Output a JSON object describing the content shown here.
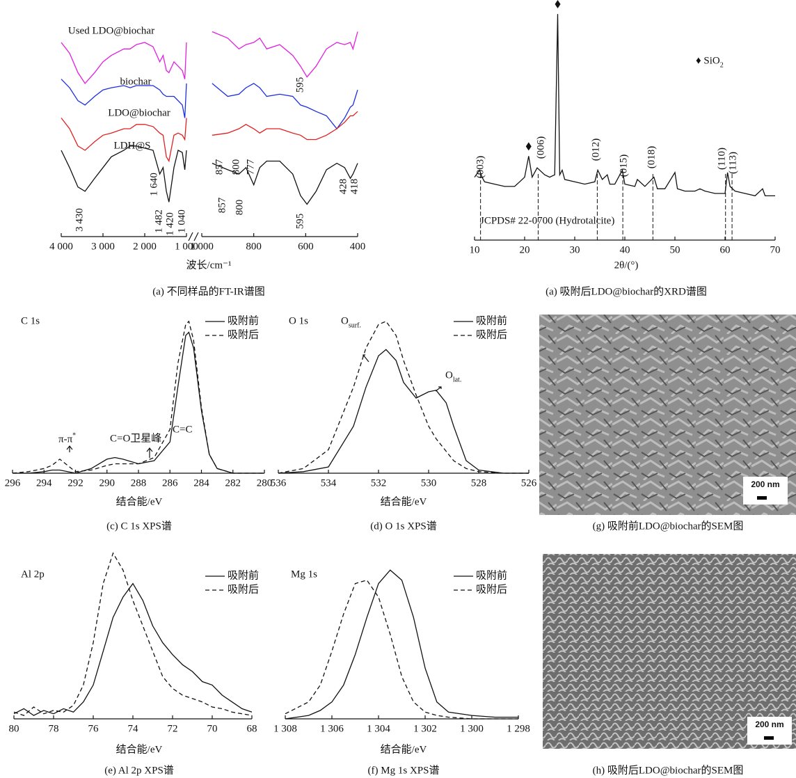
{
  "chart_data": [
    {
      "type": "line",
      "xlabel": "波长/cm⁻¹",
      "caption": "(a) 不同样品的FT-IR谱图",
      "segments": [
        {
          "xlim": [
            4000,
            1000
          ],
          "xticks": [
            {
              "value": 4000,
              "label": "4 000"
            },
            {
              "value": 3000,
              "label": "3 000"
            },
            {
              "value": 2000,
              "label": "2 000"
            },
            {
              "value": 1000,
              "label": "1 000"
            }
          ]
        },
        {
          "xlim": [
            1000,
            400
          ],
          "xticks": [
            {
              "value": 1000,
              "label": "1 000"
            },
            800,
            600,
            400
          ]
        }
      ],
      "ylim": [
        0,
        100
      ],
      "x": [
        4000,
        3800,
        3600,
        3430,
        3200,
        3000,
        2800,
        2500,
        2350,
        2200,
        2000,
        1800,
        1640,
        1560,
        1482,
        1420,
        1300,
        1200,
        1100,
        1040,
        1000,
        960,
        900,
        857,
        830,
        800,
        777,
        750,
        700,
        650,
        620,
        595,
        560,
        520,
        480,
        450,
        428,
        418,
        400
      ],
      "series": [
        {
          "name": "Used LDO@biochar",
          "color": "#e020e0",
          "dash": false,
          "values": [
            90,
            85,
            76,
            71,
            76,
            81,
            84,
            87,
            87,
            89,
            90,
            88,
            81,
            84,
            77,
            76,
            81,
            79,
            77,
            73,
            90,
            95,
            92,
            87,
            89,
            90,
            92,
            87,
            89,
            84,
            79,
            74,
            79,
            87,
            90,
            89,
            90,
            87,
            95
          ]
        },
        {
          "name": "biochar",
          "color": "#1a2ee0",
          "dash": false,
          "values": [
            73,
            69,
            63,
            61,
            65,
            68,
            69,
            70,
            69,
            70,
            70,
            70,
            68,
            66,
            65,
            65,
            65,
            63,
            61,
            55,
            71,
            71,
            65,
            66,
            69,
            71,
            69,
            65,
            66,
            65,
            61,
            60,
            58,
            56,
            50,
            55,
            60,
            61,
            68
          ]
        },
        {
          "name": "LDO@biochar",
          "color": "#e02020",
          "dash": false,
          "values": [
            55,
            50,
            42,
            40,
            44,
            47,
            48,
            50,
            50,
            52,
            52,
            51,
            48,
            47,
            37,
            35,
            47,
            48,
            47,
            45,
            55,
            47,
            48,
            50,
            52,
            50,
            48,
            50,
            50,
            48,
            47,
            45,
            45,
            47,
            50,
            53,
            56,
            56,
            58
          ]
        },
        {
          "name": "LDH@S",
          "color": "#111111",
          "dash": false,
          "values": [
            40,
            32,
            23,
            21,
            27,
            32,
            37,
            40,
            42,
            42,
            41,
            40,
            29,
            32,
            21,
            16,
            32,
            40,
            39,
            31,
            40,
            34,
            31,
            29,
            32,
            24,
            32,
            35,
            35,
            29,
            19,
            15,
            21,
            31,
            34,
            32,
            27,
            29,
            34
          ]
        }
      ],
      "annotations": [
        "3 430",
        "1 640",
        "1 482",
        "1 420",
        "1 040",
        "857",
        "800",
        "777",
        "857",
        "800",
        "595",
        "595",
        "428",
        "418"
      ]
    },
    {
      "type": "line",
      "xlabel": "2θ/(°)",
      "caption": "(a) 吸附后LDO@biochar的XRD谱图",
      "xlim": [
        10,
        70
      ],
      "xticks": [
        10,
        20,
        30,
        40,
        50,
        60,
        70
      ],
      "ylim": [
        0,
        100
      ],
      "x": [
        10,
        11,
        11.5,
        12,
        14,
        16,
        18,
        19,
        20,
        20.8,
        21.5,
        22.5,
        24,
        25,
        26,
        26.6,
        27,
        27.5,
        28,
        30,
        32,
        34,
        34.6,
        35.5,
        36.5,
        37,
        38,
        39.5,
        40,
        42,
        42.5,
        44,
        45.8,
        46.5,
        48,
        50,
        50.5,
        52,
        54,
        55,
        56,
        58,
        60,
        60.5,
        61,
        62,
        64,
        66,
        67.5,
        68,
        70
      ],
      "series": [
        {
          "color": "#111111",
          "dash": false,
          "values": [
            27,
            30,
            27,
            25,
            24,
            23,
            23,
            25,
            27,
            36,
            27,
            31,
            28,
            27,
            28,
            97,
            28,
            30,
            26,
            25,
            24,
            25,
            30,
            26,
            28,
            24,
            24,
            30,
            24,
            23,
            26,
            23,
            27,
            22,
            22,
            29,
            22,
            21,
            21,
            22,
            21,
            20,
            20,
            29,
            23,
            21,
            20,
            19,
            22,
            19,
            19
          ]
        }
      ],
      "ref_lines": [
        11.2,
        22.7,
        34.5,
        39.6,
        45.6,
        60.1,
        61.4
      ],
      "markers": [
        20.8,
        26.6
      ],
      "annotations": [
        "(003)",
        "(006)",
        "(012)",
        "(015)",
        "(018)",
        "(110)",
        "(113)",
        "JCPDS# 22-0700 (Hydrotalcite)",
        {
          "text": "♦  SiO",
          "sub": "2"
        }
      ]
    },
    {
      "type": "line",
      "title": "C 1s",
      "xlabel": "结合能/eV",
      "caption": "(c) C 1s XPS谱",
      "xlim": [
        296,
        280
      ],
      "xticks": [
        296,
        294,
        292,
        290,
        288,
        286,
        284,
        282,
        280
      ],
      "ylim": [
        0,
        100
      ],
      "x": [
        296,
        295,
        294,
        293.5,
        293,
        292.5,
        292,
        291,
        290,
        289.5,
        289,
        288,
        287,
        286,
        285.5,
        285,
        284.8,
        284.5,
        284,
        283.5,
        283,
        282,
        280
      ],
      "series": [
        {
          "name": "吸附前",
          "color": "#111111",
          "dash": false,
          "values": [
            0,
            0,
            1,
            2,
            2,
            1,
            0,
            3,
            9,
            10,
            9,
            6,
            8,
            20,
            55,
            88,
            90,
            80,
            40,
            12,
            3,
            0,
            0
          ]
        },
        {
          "name": "吸附后",
          "color": "#111111",
          "dash": true,
          "values": [
            0,
            1,
            3,
            5,
            9,
            5,
            1,
            2,
            5,
            6,
            6,
            6,
            10,
            28,
            70,
            95,
            97,
            85,
            42,
            12,
            3,
            0,
            0
          ]
        }
      ],
      "annotations": [
        {
          "text": "π-π",
          "sup": "*"
        },
        "C=O卫星峰",
        "C=C"
      ]
    },
    {
      "type": "line",
      "title": "O 1s",
      "xlabel": "结合能/eV",
      "caption": "(d) O 1s XPS谱",
      "xlim": [
        536,
        526
      ],
      "xticks": [
        536,
        534,
        532,
        530,
        528,
        526
      ],
      "ylim": [
        0,
        100
      ],
      "x": [
        536,
        535,
        534,
        533,
        532.5,
        532,
        531.7,
        531.3,
        531,
        530.5,
        530,
        529.7,
        529.3,
        529,
        528.5,
        528,
        527,
        526
      ],
      "series": [
        {
          "name": "吸附前",
          "color": "#111111",
          "dash": false,
          "values": [
            0,
            1,
            4,
            30,
            55,
            75,
            79,
            72,
            58,
            48,
            52,
            53,
            45,
            30,
            8,
            2,
            0,
            0
          ]
        },
        {
          "name": "吸附后",
          "color": "#111111",
          "dash": true,
          "values": [
            0,
            3,
            15,
            55,
            80,
            95,
            97,
            88,
            72,
            50,
            30,
            22,
            14,
            8,
            3,
            1,
            0,
            0
          ]
        }
      ],
      "annotations": [
        {
          "text": "O",
          "sub": "surf."
        },
        {
          "text": "O",
          "sub": "lat."
        }
      ]
    },
    {
      "type": "line",
      "title": "Al 2p",
      "xlabel": "结合能/eV",
      "caption": "(e) Al 2p XPS谱",
      "xlim": [
        80,
        68
      ],
      "xticks": [
        80,
        78,
        76,
        74,
        72,
        70,
        68
      ],
      "ylim": [
        0,
        100
      ],
      "x": [
        80,
        79.5,
        79,
        78.5,
        78,
        77.5,
        77,
        76.5,
        76,
        75.5,
        75,
        74.5,
        74,
        73.5,
        73,
        72.5,
        72,
        71.5,
        71,
        70.5,
        70,
        69.5,
        69,
        68.5,
        68
      ],
      "series": [
        {
          "name": "吸附前",
          "color": "#111111",
          "dash": false,
          "values": [
            3,
            6,
            2,
            5,
            3,
            6,
            4,
            10,
            20,
            40,
            60,
            72,
            80,
            70,
            55,
            45,
            38,
            32,
            28,
            22,
            20,
            14,
            10,
            6,
            4
          ]
        },
        {
          "name": "吸附后",
          "color": "#111111",
          "dash": true,
          "values": [
            4,
            2,
            7,
            3,
            5,
            4,
            8,
            20,
            45,
            80,
            98,
            88,
            70,
            55,
            40,
            25,
            18,
            14,
            12,
            10,
            7,
            6,
            4,
            3,
            2
          ]
        }
      ]
    },
    {
      "type": "line",
      "title": "Mg 1s",
      "xlabel": "结合能/eV",
      "caption": "(f) Mg 1s XPS谱",
      "xlim": [
        1308,
        1298
      ],
      "xticks": [
        {
          "value": 1308,
          "label": "1 308"
        },
        {
          "value": 1306,
          "label": "1 306"
        },
        {
          "value": 1304,
          "label": "1 304"
        },
        {
          "value": 1302,
          "label": "1 302"
        },
        {
          "value": 1300,
          "label": "1 300"
        },
        {
          "value": 1298,
          "label": "1 298"
        }
      ],
      "ylim": [
        0,
        100
      ],
      "x": [
        1308,
        1307,
        1306.5,
        1306,
        1305.5,
        1305,
        1304.5,
        1304,
        1303.5,
        1303,
        1302.5,
        1302,
        1301.5,
        1301,
        1300,
        1299,
        1298
      ],
      "series": [
        {
          "name": "吸附前",
          "color": "#111111",
          "dash": false,
          "values": [
            0,
            2,
            5,
            10,
            20,
            38,
            60,
            80,
            88,
            82,
            60,
            30,
            10,
            4,
            2,
            1,
            1
          ]
        },
        {
          "name": "吸附后",
          "color": "#111111",
          "dash": true,
          "values": [
            3,
            10,
            20,
            40,
            62,
            80,
            82,
            72,
            50,
            25,
            10,
            4,
            2,
            1,
            0,
            0,
            0
          ]
        }
      ]
    }
  ],
  "images": [
    {
      "caption": "(g) 吸附前LDO@biochar的SEM图",
      "scale_bar": "200 nm"
    },
    {
      "caption": "(h) 吸附后LDO@biochar的SEM图",
      "scale_bar": "200 nm"
    }
  ]
}
